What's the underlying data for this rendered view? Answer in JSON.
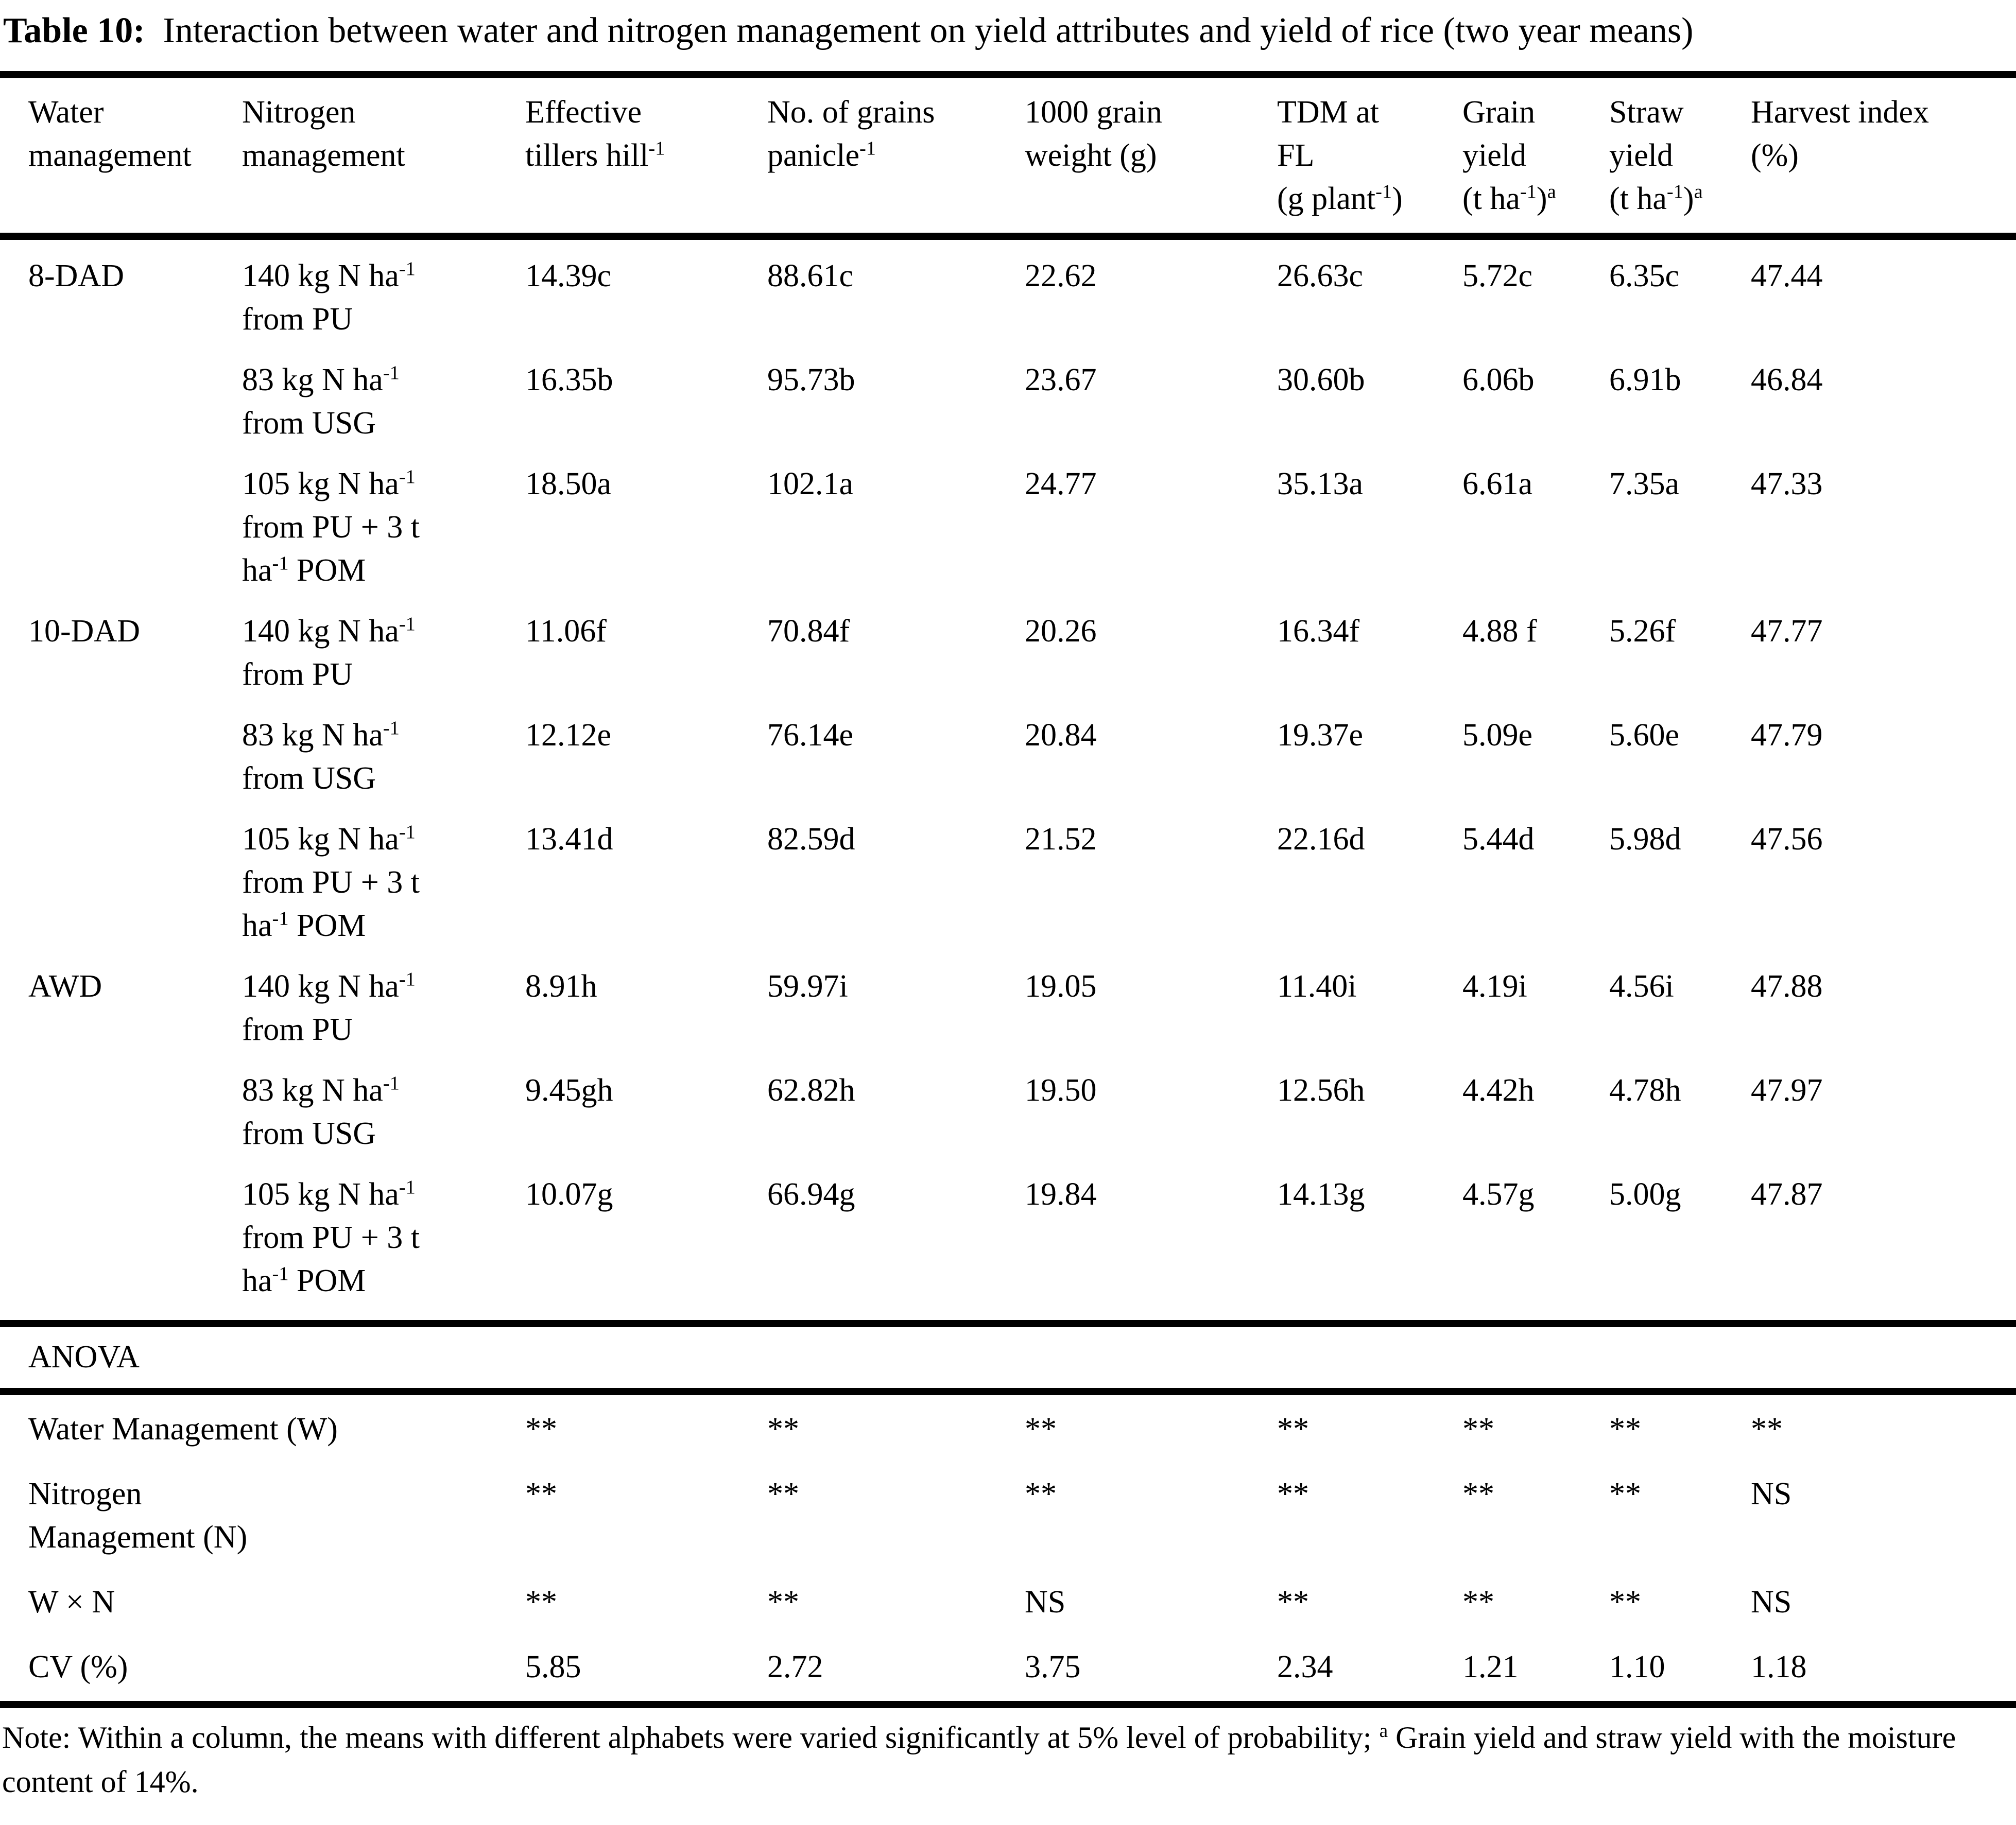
{
  "title": {
    "label": "Table 10:",
    "text": "Interaction between water and nitrogen management on yield attributes and yield of rice (two year means)"
  },
  "table": {
    "columns": [
      "Water\nmanagement",
      "Nitrogen\nmanagement",
      "Effective\ntillers hill^{-1}",
      "No. of grains\npanicle^{-1}",
      "1000 grain\nweight (g)",
      "TDM at\nFL\n(g plant^{-1})",
      "Grain\nyield\n(t ha^{-1})^{a}",
      "Straw\nyield\n(t ha^{-1})^{a}",
      "Harvest index\n(%)"
    ],
    "groups": [
      {
        "water": "8-DAD",
        "rows": [
          {
            "nitrogen": "140 kg N ha^{-1}\nfrom PU",
            "values": [
              "14.39c",
              "88.61c",
              "22.62",
              "26.63c",
              "5.72c",
              "6.35c",
              "47.44"
            ]
          },
          {
            "nitrogen": "83 kg N ha^{-1}\nfrom USG",
            "values": [
              "16.35b",
              "95.73b",
              "23.67",
              "30.60b",
              "6.06b",
              "6.91b",
              "46.84"
            ]
          },
          {
            "nitrogen": "105 kg N ha^{-1}\nfrom PU + 3 t\nha^{-1} POM",
            "values": [
              "18.50a",
              "102.1a",
              "24.77",
              "35.13a",
              "6.61a",
              "7.35a",
              "47.33"
            ]
          }
        ]
      },
      {
        "water": "10-DAD",
        "rows": [
          {
            "nitrogen": "140 kg N ha^{-1}\nfrom PU",
            "values": [
              "11.06f",
              "70.84f",
              "20.26",
              "16.34f",
              "4.88 f",
              "5.26f",
              "47.77"
            ]
          },
          {
            "nitrogen": "83 kg N ha^{-1}\nfrom USG",
            "values": [
              "12.12e",
              "76.14e",
              "20.84",
              "19.37e",
              "5.09e",
              "5.60e",
              "47.79"
            ]
          },
          {
            "nitrogen": "105 kg N ha^{-1}\nfrom PU + 3 t\nha^{-1} POM",
            "values": [
              "13.41d",
              "82.59d",
              "21.52",
              "22.16d",
              "5.44d",
              "5.98d",
              "47.56"
            ]
          }
        ]
      },
      {
        "water": "AWD",
        "rows": [
          {
            "nitrogen": "140 kg N ha^{-1}\nfrom PU",
            "values": [
              "8.91h",
              "59.97i",
              "19.05",
              "11.40i",
              "4.19i",
              "4.56i",
              "47.88"
            ]
          },
          {
            "nitrogen": "83 kg N ha^{-1}\nfrom USG",
            "values": [
              "9.45gh",
              "62.82h",
              "19.50",
              "12.56h",
              "4.42h",
              "4.78h",
              "47.97"
            ]
          },
          {
            "nitrogen": "105 kg N ha^{-1}\nfrom PU + 3 t\nha^{-1} POM",
            "values": [
              "10.07g",
              "66.94g",
              "19.84",
              "14.13g",
              "4.57g",
              "5.00g",
              "47.87"
            ]
          }
        ]
      }
    ],
    "anova": {
      "heading": "ANOVA",
      "rows": [
        {
          "label": "Water Management (W)",
          "values": [
            "**",
            "**",
            "**",
            "**",
            "**",
            "**",
            "**"
          ]
        },
        {
          "label": "Nitrogen\nManagement (N)",
          "values": [
            "**",
            "**",
            "**",
            "**",
            "**",
            "**",
            "NS"
          ]
        },
        {
          "label": "W × N",
          "values": [
            "**",
            "**",
            "NS",
            "**",
            "**",
            "**",
            "NS"
          ]
        },
        {
          "label": "CV (%)",
          "values": [
            "5.85",
            "2.72",
            "3.75",
            "2.34",
            "1.21",
            "1.10",
            "1.18"
          ]
        }
      ]
    }
  },
  "note": "Note: Within a column, the means with different alphabets were varied significantly at 5% level of probability; ^{a} Grain yield and straw yield with the moisture content of 14%."
}
